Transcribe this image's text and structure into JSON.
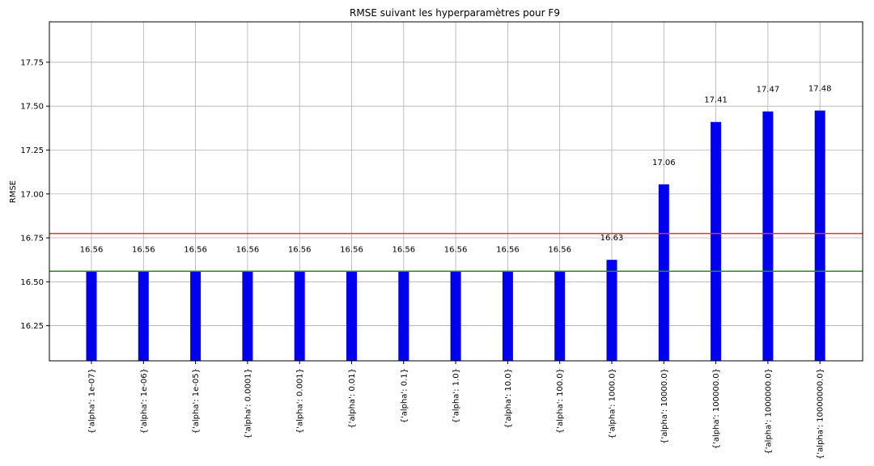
{
  "chart_data": {
    "type": "bar",
    "title": "RMSE suivant les hyperparamètres pour F9",
    "xlabel": "",
    "ylabel": "RMSE",
    "ylim": [
      16.05,
      17.98
    ],
    "yticks": [
      16.25,
      16.5,
      16.75,
      17.0,
      17.25,
      17.5,
      17.75
    ],
    "ytick_labels": [
      "16.25",
      "16.50",
      "16.75",
      "17.00",
      "17.25",
      "17.50",
      "17.75"
    ],
    "grid": true,
    "bar_color": "#0000ee",
    "categories": [
      "{'alpha': 1e-07}",
      "{'alpha': 1e-06}",
      "{'alpha': 1e-05}",
      "{'alpha': 0.0001}",
      "{'alpha': 0.001}",
      "{'alpha': 0.01}",
      "{'alpha': 0.1}",
      "{'alpha': 1.0}",
      "{'alpha': 10.0}",
      "{'alpha': 100.0}",
      "{'alpha': 1000.0}",
      "{'alpha': 10000.0}",
      "{'alpha': 100000.0}",
      "{'alpha': 1000000.0}",
      "{'alpha': 10000000.0}"
    ],
    "values": [
      16.56,
      16.56,
      16.56,
      16.56,
      16.56,
      16.56,
      16.56,
      16.56,
      16.56,
      16.56,
      16.625,
      17.055,
      17.41,
      17.47,
      17.475
    ],
    "value_labels": [
      "16.56",
      "16.56",
      "16.56",
      "16.56",
      "16.56",
      "16.56",
      "16.56",
      "16.56",
      "16.56",
      "16.56",
      "16.63",
      "17.06",
      "17.41",
      "17.47",
      "17.48"
    ],
    "reference_lines": [
      {
        "value": 16.775,
        "color": "#ff2a2a"
      },
      {
        "value": 16.56,
        "color": "#2a8a2a"
      }
    ]
  }
}
